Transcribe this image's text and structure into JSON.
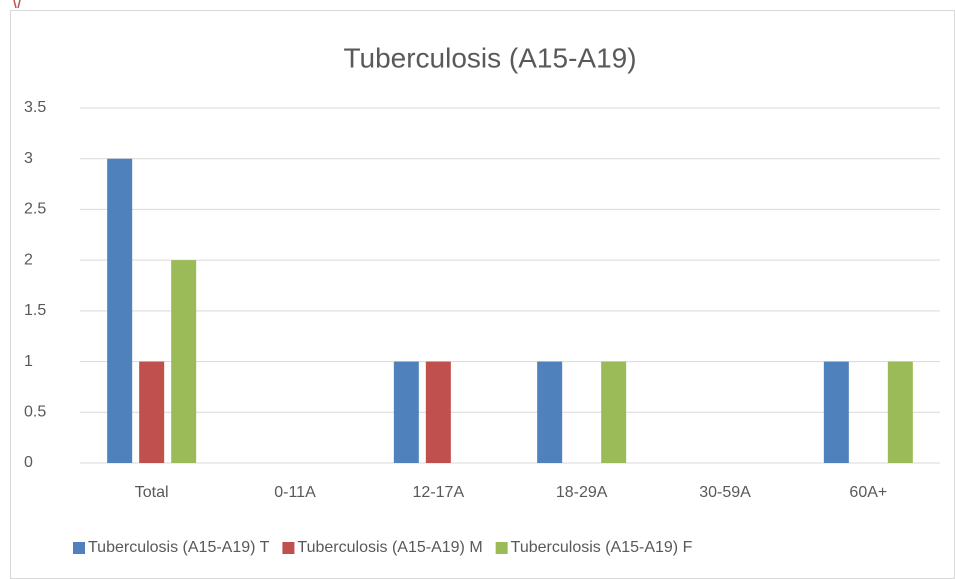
{
  "chart_data": {
    "type": "bar",
    "title": "Tuberculosis (A15-A19)",
    "categories": [
      "Total",
      "0-11A",
      "12-17A",
      "18-29A",
      "30-59A",
      "60A+"
    ],
    "series": [
      {
        "name": "Tuberculosis (A15-A19) T",
        "color": "#4f81bd",
        "values": [
          3,
          0,
          1,
          1,
          0,
          1
        ]
      },
      {
        "name": "Tuberculosis (A15-A19) M",
        "color": "#c0504d",
        "values": [
          1,
          0,
          1,
          0,
          0,
          0
        ]
      },
      {
        "name": "Tuberculosis (A15-A19) F",
        "color": "#9bbb59",
        "values": [
          2,
          0,
          0,
          1,
          0,
          1
        ]
      }
    ],
    "ylim": [
      0,
      3.5
    ],
    "yticks": [
      0,
      0.5,
      1,
      1.5,
      2,
      2.5,
      3,
      3.5
    ],
    "grid": true,
    "legend": "bottom"
  }
}
